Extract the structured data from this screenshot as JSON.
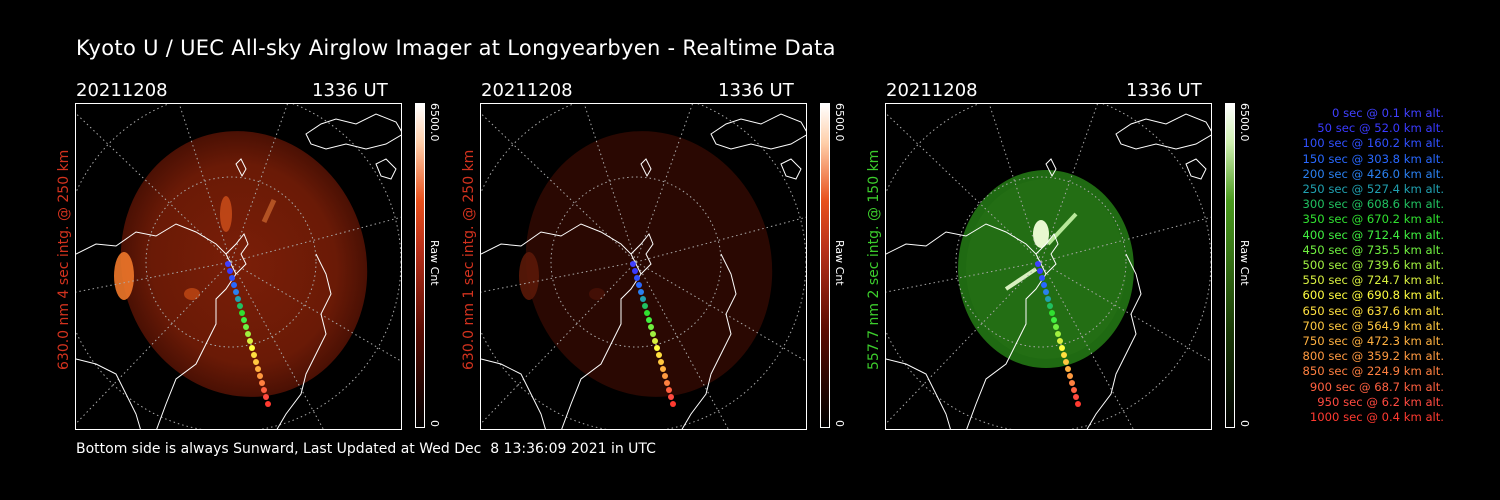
{
  "title": "Kyoto U / UEC All-sky Airglow Imager at Longyearbyen - Realtime Data",
  "panels": [
    {
      "date": "20211208",
      "time": "1336 UT",
      "ylabel": "630.0 nm 4 sec intg. @ 250 km",
      "label_color": "#d2321e",
      "cbar_max": "6500.0",
      "cbar_min": "0",
      "cbar_unit": "Raw Cnt",
      "color_top": "#ffffff",
      "color_mid": "#e8501c",
      "color_bot": "#000000"
    },
    {
      "date": "20211208",
      "time": "1336 UT",
      "ylabel": "630.0 nm 1 sec intg. @ 250 km",
      "label_color": "#d2321e",
      "cbar_max": "6500.0",
      "cbar_min": "0",
      "cbar_unit": "Raw Cnt",
      "color_top": "#ffffff",
      "color_mid": "#e8501c",
      "color_bot": "#000000"
    },
    {
      "date": "20211208",
      "time": "1336 UT",
      "ylabel": "557.7 nm 2 sec intg. @ 150 km",
      "label_color": "#3ccc2c",
      "cbar_max": "6500.0",
      "cbar_min": "0",
      "cbar_unit": "Raw Cnt",
      "color_top": "#ffffff",
      "color_mid": "#4a9a1e",
      "color_bot": "#000000"
    }
  ],
  "legend": [
    {
      "text": "0 sec @   0.1 km alt.",
      "color": "#4040ff"
    },
    {
      "text": "50 sec @  52.0 km alt.",
      "color": "#3a3aff"
    },
    {
      "text": "100 sec @ 160.2 km alt.",
      "color": "#3050ff"
    },
    {
      "text": "150 sec @ 303.8 km alt.",
      "color": "#2868ff"
    },
    {
      "text": "200 sec @ 426.0 km alt.",
      "color": "#2a80f0"
    },
    {
      "text": "250 sec @ 527.4 km alt.",
      "color": "#20a0b0"
    },
    {
      "text": "300 sec @ 608.6 km alt.",
      "color": "#20c060"
    },
    {
      "text": "350 sec @ 670.2 km alt.",
      "color": "#30e030"
    },
    {
      "text": "400 sec @ 712.4 km alt.",
      "color": "#40f040"
    },
    {
      "text": "450 sec @ 735.5 km alt.",
      "color": "#70f040"
    },
    {
      "text": "500 sec @ 739.6 km alt.",
      "color": "#a0f040"
    },
    {
      "text": "550 sec @ 724.7 km alt.",
      "color": "#d8f040"
    },
    {
      "text": "600 sec @ 690.8 km alt.",
      "color": "#ffff40"
    },
    {
      "text": "650 sec @ 637.6 km alt.",
      "color": "#ffe040"
    },
    {
      "text": "700 sec @ 564.9 km alt.",
      "color": "#ffc840"
    },
    {
      "text": "750 sec @ 472.3 km alt.",
      "color": "#ffb040"
    },
    {
      "text": "800 sec @ 359.2 km alt.",
      "color": "#ff9a40"
    },
    {
      "text": "850 sec @ 224.9 km alt.",
      "color": "#ff8040"
    },
    {
      "text": "900 sec @  68.7 km alt.",
      "color": "#ff6040"
    },
    {
      "text": "950 sec @   6.2 km alt.",
      "color": "#ff4a40"
    },
    {
      "text": "1000 sec @   0.4 km alt.",
      "color": "#ff3a30"
    }
  ],
  "footer": "Bottom side is always Sunward, Last Updated at Wed Dec  8 13:36:09 2021 in UTC"
}
